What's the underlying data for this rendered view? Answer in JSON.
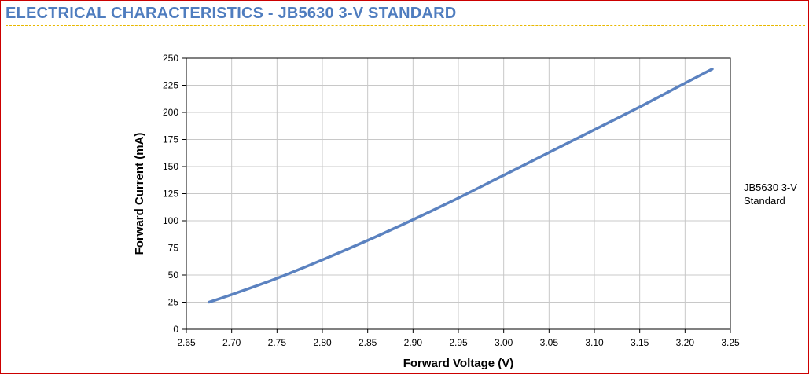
{
  "header": {
    "title": "ELECTRICAL CHARACTERISTICS - JB5630 3-V STANDARD",
    "title_color": "#4f7dbf",
    "rule_color": "#e8b800",
    "border_color": "#cc0000"
  },
  "chart_data": {
    "type": "line",
    "title": "",
    "xlabel": "Forward Voltage (V)",
    "ylabel": "Forward Current (mA)",
    "xlim": [
      2.65,
      3.25
    ],
    "ylim": [
      0,
      250
    ],
    "xticks": [
      "2.65",
      "2.70",
      "2.75",
      "2.80",
      "2.85",
      "2.90",
      "2.95",
      "3.00",
      "3.05",
      "3.10",
      "3.15",
      "3.20",
      "3.25"
    ],
    "yticks": [
      "0",
      "25",
      "50",
      "75",
      "100",
      "125",
      "150",
      "175",
      "200",
      "225",
      "250"
    ],
    "grid": true,
    "legend_placement": "right",
    "series": [
      {
        "name": "JB5630 3-V Standard",
        "color": "#5b82c0",
        "x": [
          2.675,
          2.7,
          2.75,
          2.8,
          2.85,
          2.9,
          2.95,
          3.0,
          3.05,
          3.1,
          3.15,
          3.2,
          3.23
        ],
        "y": [
          25,
          32,
          47,
          64,
          82,
          101,
          121,
          142,
          163,
          184,
          205,
          227,
          240
        ]
      }
    ]
  }
}
